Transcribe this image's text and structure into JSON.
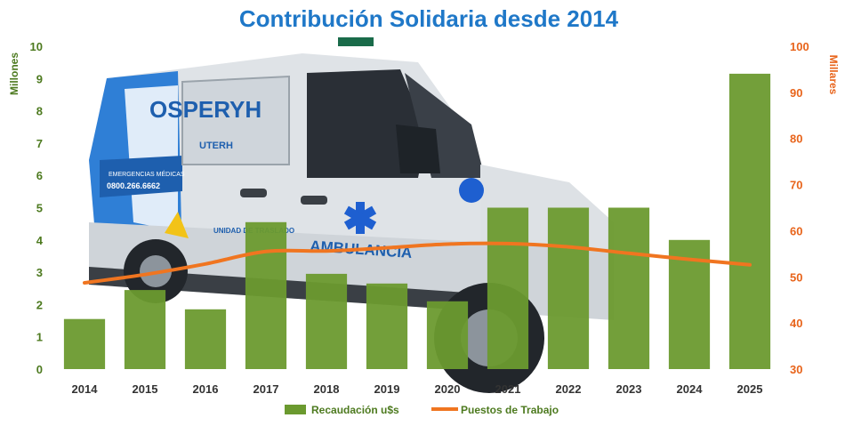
{
  "chart_data": {
    "type": "bar",
    "title": "Contribución Solidaria desde 2014",
    "categories": [
      "2014",
      "2015",
      "2016",
      "2017",
      "2018",
      "2019",
      "2020",
      "2021",
      "2022",
      "2023",
      "2024",
      "2025"
    ],
    "series": [
      {
        "name": "Recaudación u$s",
        "type": "bar",
        "axis": "left",
        "values": [
          1.55,
          2.45,
          1.85,
          4.55,
          2.95,
          2.65,
          2.1,
          5.0,
          5.0,
          5.0,
          4.0,
          9.15
        ]
      },
      {
        "name": "Puestos de Trabajo",
        "type": "line",
        "axis": "right",
        "values": [
          48.7,
          50.5,
          52.8,
          55.5,
          55.6,
          56.3,
          57.1,
          57.2,
          56.5,
          55.1,
          53.8,
          52.6
        ]
      }
    ],
    "y_left": {
      "label": "Millones",
      "min": 0,
      "max": 10,
      "ticks": [
        "0",
        "1",
        "2",
        "3",
        "4",
        "5",
        "6",
        "7",
        "8",
        "9",
        "10"
      ]
    },
    "y_right": {
      "label": "Millares",
      "min": 30,
      "max": 100,
      "ticks": [
        "30",
        "40",
        "50",
        "60",
        "70",
        "80",
        "90",
        "100"
      ]
    },
    "legend_position": "bottom",
    "grid": false
  },
  "background_photo": {
    "brand": "OSPERYH",
    "label": "AMBULANCIA",
    "sub_brand": "UTERH",
    "phone": "0800.266.6662",
    "caption": "EMERGENCIAS MÉDICAS",
    "unit": "UNIDAD DE TRASLADO"
  },
  "colors": {
    "bar": "#6b9a2f",
    "line": "#f07520",
    "title": "#1f78c8",
    "left_axis": "#4d7a1f",
    "right_axis": "#e8641b",
    "van_body": "#e9ecef",
    "van_blue": "#2f7fd6"
  }
}
